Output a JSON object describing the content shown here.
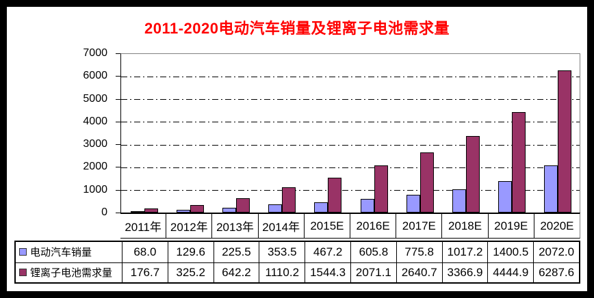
{
  "chart_data": {
    "type": "bar",
    "title": "2011-2020电动汽车销量及锂离子电池需求量",
    "title_color": "#FF0000",
    "categories": [
      "2011年",
      "2012年",
      "2013年",
      "2014年",
      "2015E",
      "2016E",
      "2017E",
      "2018E",
      "2019E",
      "2020E"
    ],
    "series": [
      {
        "name": "电动汽车销量",
        "color": "#9999FF",
        "values": [
          68.0,
          129.6,
          225.5,
          353.5,
          467.2,
          605.8,
          775.8,
          1017.2,
          1400.5,
          2072.0
        ]
      },
      {
        "name": "锂离子电池需求量",
        "color": "#993366",
        "values": [
          176.7,
          325.2,
          642.2,
          1110.2,
          1544.3,
          2071.1,
          2640.7,
          3366.9,
          4444.9,
          6287.6
        ]
      }
    ],
    "ylim": [
      0,
      7000
    ],
    "yticks": [
      0,
      1000,
      2000,
      3000,
      4000,
      5000,
      6000,
      7000
    ],
    "grid": "horizontal dash-dot",
    "legend_position": "table-left",
    "value_decimals": 1,
    "gridline_color": "#000000",
    "bar_border_color": "#000000"
  }
}
